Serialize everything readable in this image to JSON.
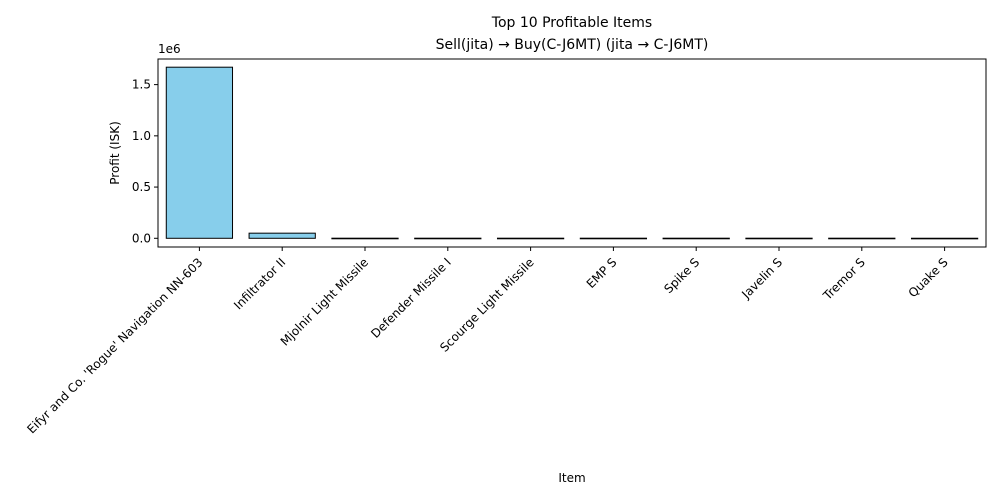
{
  "chart_data": {
    "type": "bar",
    "title": "Top 10 Profitable Items",
    "subtitle": "Sell(jita) → Buy(C-J6MT) (jita → C-J6MT)",
    "xlabel": "Item",
    "ylabel": "Profit (ISK)",
    "offset_label": "1e6",
    "ylim": [
      -0.085,
      1.75
    ],
    "yticks": [
      0.0,
      0.5,
      1.0,
      1.5
    ],
    "ytick_labels": [
      "0.0",
      "0.5",
      "1.0",
      "1.5"
    ],
    "grid": false,
    "bar_color": "#87ceeb",
    "edge_color": "#000000",
    "categories": [
      "Eifyr and Co. 'Rogue' Navigation NN-603",
      "Infiltrator II",
      "Mjolnir Light Missile",
      "Defender Missile I",
      "Scourge Light Missile",
      "EMP S",
      "Spike S",
      "Javelin S",
      "Tremor S",
      "Quake S"
    ],
    "values": [
      1.67,
      0.05,
      0.001,
      0.001,
      0.001,
      0.001,
      0.001,
      0.001,
      0.001,
      0.0005
    ]
  }
}
